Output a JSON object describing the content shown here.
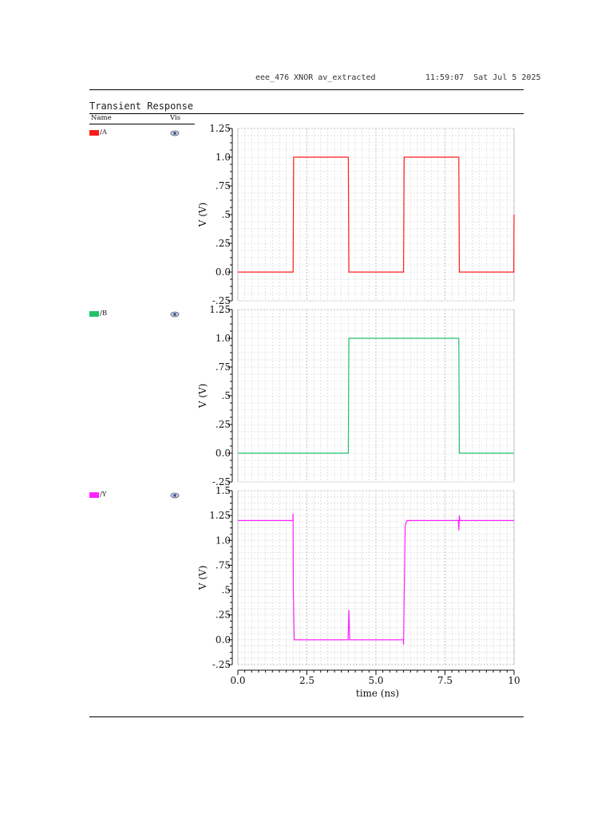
{
  "header": {
    "design": "eee_476 XNOR av_extracted",
    "timestamp": "11:59:07  Sat Jul 5 2025"
  },
  "panel_title": "Transient Response",
  "columns": {
    "name": "Name",
    "vis": "Vis"
  },
  "signals": [
    {
      "name": "/A",
      "color": "#ff1a1a",
      "visible_icon": "eye-icon"
    },
    {
      "name": "/B",
      "color": "#22c06a",
      "visible_icon": "eye-icon"
    },
    {
      "name": "/Y",
      "color": "#ff22ff",
      "visible_icon": "eye-icon"
    }
  ],
  "chart_data": [
    {
      "type": "line",
      "series": [
        {
          "name": "/A",
          "color": "#ff1a1a",
          "x": [
            0,
            2.0,
            2.02,
            4.0,
            4.02,
            6.0,
            6.02,
            8.0,
            8.02,
            9.99,
            10.0
          ],
          "y": [
            0,
            0,
            1.0,
            1.0,
            0,
            0,
            1.0,
            1.0,
            0,
            0,
            0.5
          ]
        }
      ],
      "ylabel": "V (V)",
      "xlim": [
        0,
        10
      ],
      "ylim": [
        -0.25,
        1.25
      ],
      "yticks": [
        -0.25,
        0.0,
        0.25,
        0.5,
        0.75,
        1.0,
        1.25
      ],
      "ytick_labels": [
        "-.25",
        "0.0",
        ".25",
        ".5",
        ".75",
        "1.0",
        "1.25"
      ],
      "grid": true
    },
    {
      "type": "line",
      "series": [
        {
          "name": "/B",
          "color": "#22c06a",
          "x": [
            0,
            4.0,
            4.02,
            8.0,
            8.02,
            10.0
          ],
          "y": [
            0,
            0,
            1.0,
            1.0,
            0,
            0
          ]
        }
      ],
      "ylabel": "V (V)",
      "xlim": [
        0,
        10
      ],
      "ylim": [
        -0.25,
        1.25
      ],
      "yticks": [
        -0.25,
        0.0,
        0.25,
        0.5,
        0.75,
        1.0,
        1.25
      ],
      "ytick_labels": [
        "-.25",
        "0.0",
        ".25",
        ".5",
        ".75",
        "1.0",
        "1.25"
      ],
      "grid": true
    },
    {
      "type": "line",
      "series": [
        {
          "name": "/Y",
          "color": "#ff22ff",
          "x": [
            0,
            1.99,
            2.0,
            2.01,
            2.04,
            2.06,
            3.99,
            4.02,
            4.05,
            4.08,
            5.99,
            6.0,
            6.02,
            6.06,
            6.12,
            7.98,
            8.0,
            8.02,
            8.04,
            10.0
          ],
          "y": [
            1.2,
            1.2,
            1.27,
            0.5,
            0.0,
            0.0,
            0.0,
            0.3,
            0.0,
            0.0,
            0.0,
            -0.05,
            0.4,
            1.15,
            1.2,
            1.2,
            1.1,
            1.25,
            1.2,
            1.2
          ]
        }
      ],
      "ylabel": "V (V)",
      "xlabel": "time (ns)",
      "xlim": [
        0,
        10
      ],
      "ylim": [
        -0.25,
        1.5
      ],
      "xticks": [
        0,
        2.5,
        5.0,
        7.5,
        10
      ],
      "xtick_labels": [
        "0.0",
        "2.5",
        "5.0",
        "7.5",
        "10"
      ],
      "yticks": [
        -0.25,
        0.0,
        0.25,
        0.5,
        0.75,
        1.0,
        1.25,
        1.5
      ],
      "ytick_labels": [
        "-.25",
        "0.0",
        ".25",
        ".5",
        ".75",
        "1.0",
        "1.25",
        "1.5"
      ],
      "grid": true
    }
  ]
}
